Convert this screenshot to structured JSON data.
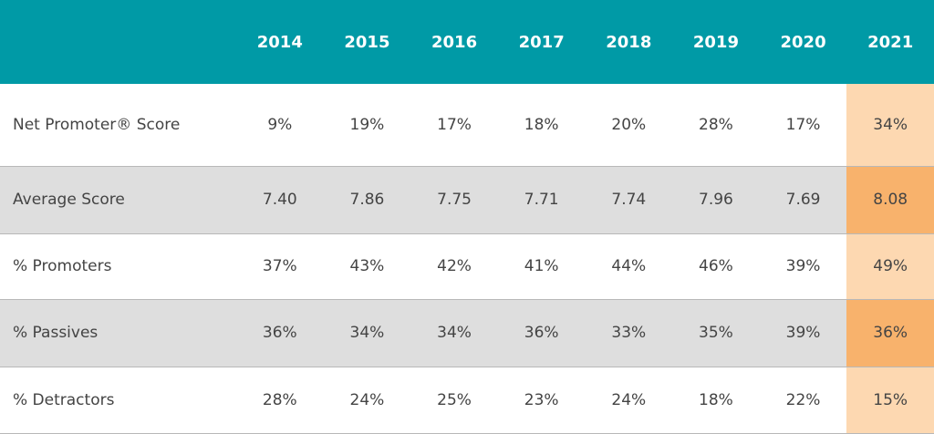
{
  "table": {
    "header": [
      "2014",
      "2015",
      "2016",
      "2017",
      "2018",
      "2019",
      "2020",
      "2021"
    ],
    "rows": [
      {
        "label": "Net Promoter® Score",
        "cells": [
          "9%",
          "19%",
          "17%",
          "18%",
          "20%",
          "28%",
          "17%",
          "34%"
        ]
      },
      {
        "label": "Average Score",
        "cells": [
          "7.40",
          "7.86",
          "7.75",
          "7.71",
          "7.74",
          "7.96",
          "7.69",
          "8.08"
        ]
      },
      {
        "label": "% Promoters",
        "cells": [
          "37%",
          "43%",
          "42%",
          "41%",
          "44%",
          "46%",
          "39%",
          "49%"
        ]
      },
      {
        "label": "% Passives",
        "cells": [
          "36%",
          "34%",
          "34%",
          "36%",
          "33%",
          "35%",
          "39%",
          "36%"
        ]
      },
      {
        "label": "% Detractors",
        "cells": [
          "28%",
          "24%",
          "25%",
          "23%",
          "24%",
          "18%",
          "22%",
          "15%"
        ]
      }
    ]
  }
}
